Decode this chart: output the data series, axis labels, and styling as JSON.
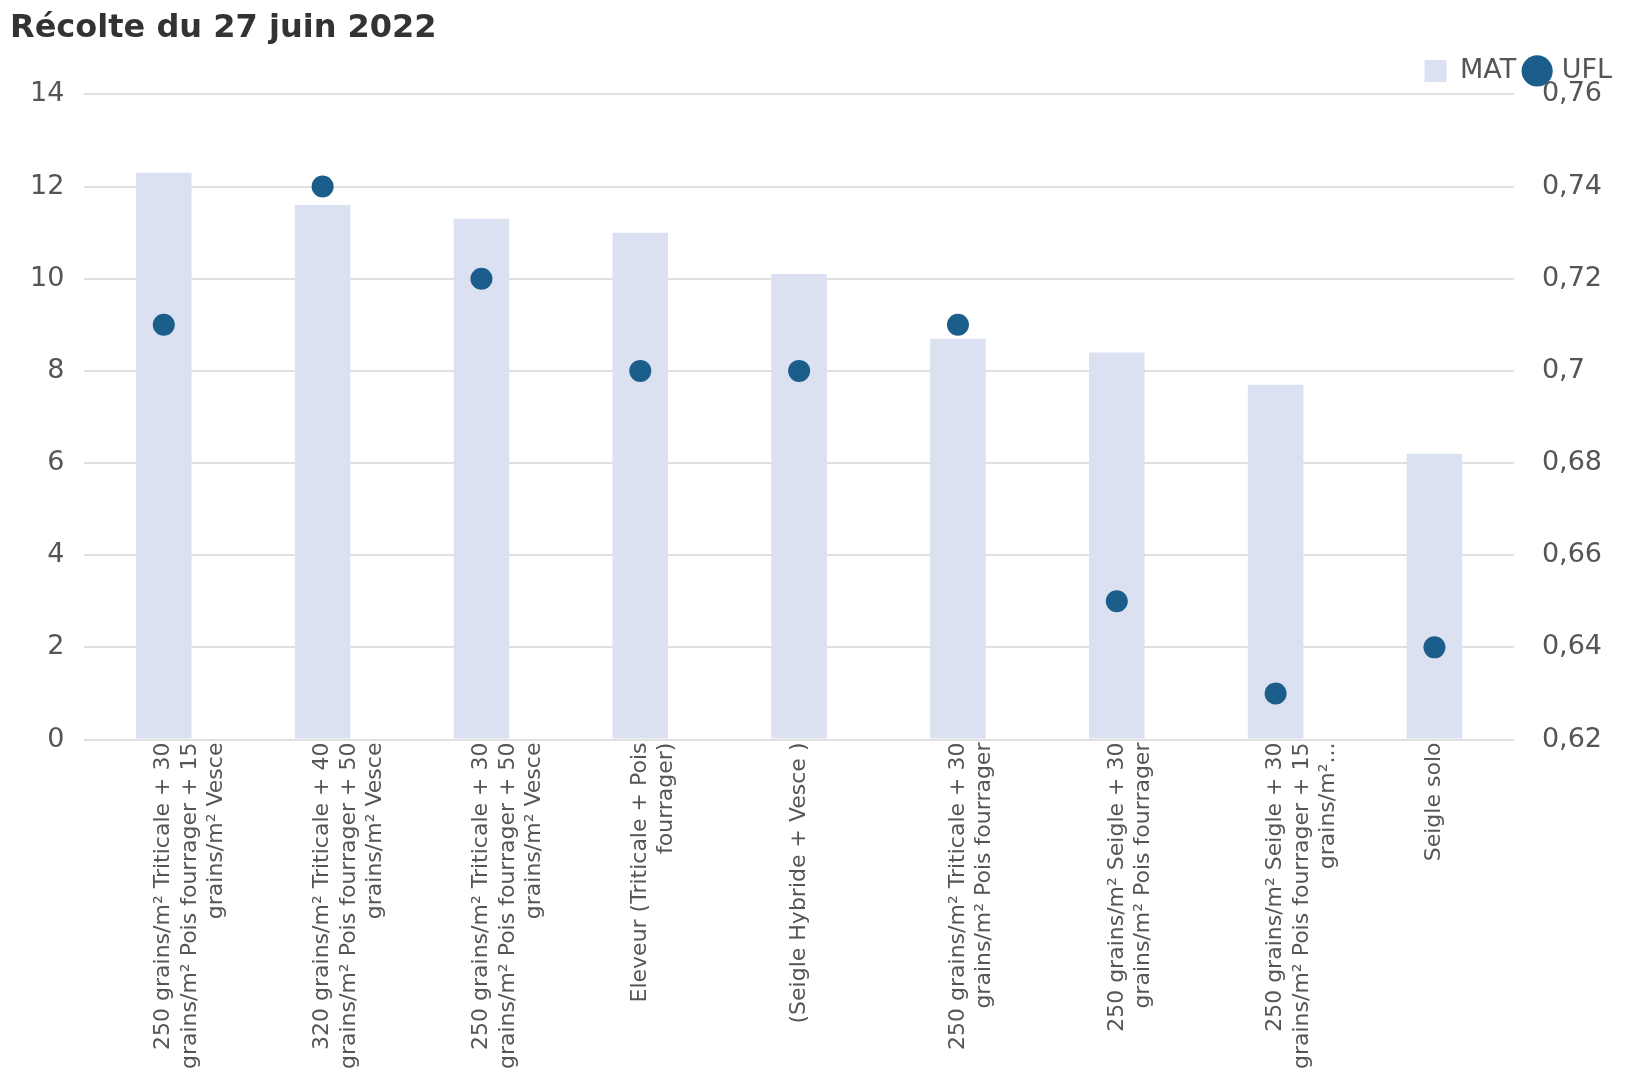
{
  "chart_data": {
    "type": "bar",
    "title": "Récolte du 27 juin 2022",
    "categories": [
      "250 grains/m² Triticale + 30 grains/m² Pois fourrager + 15 grains/m² Vesce",
      "320 grains/m² Triticale + 40 grains/m² Pois fourrager + 50 grains/m² Vesce",
      "250 grains/m² Triticale + 30 grains/m² Pois fourrager + 50 grains/m² Vesce",
      "Eleveur (Triticale + Pois fourrager)",
      "(Seigle Hybride + Vesce )",
      "250 grains/m² Triticale + 30 grains/m² Pois fourrager",
      "250 grains/m² Seigle + 30 grains/m² Pois fourrager",
      "250 grains/m² Seigle + 30 grains/m² Pois fourrager + 15 grains/m²...",
      "Seigle solo"
    ],
    "series": [
      {
        "name": "MAT",
        "color": "#dce1f2",
        "values": [
          12.3,
          11.6,
          11.3,
          11.0,
          10.1,
          8.7,
          8.4,
          7.7,
          6.2
        ]
      },
      {
        "name": "UFL",
        "type": "scatter",
        "axis": "y2",
        "color": "#1b5e8c",
        "values": [
          0.71,
          0.74,
          0.72,
          0.7,
          0.7,
          0.71,
          0.65,
          0.63,
          0.64
        ]
      }
    ],
    "ylim": [
      0,
      14
    ],
    "yticks": [
      0,
      2,
      4,
      6,
      8,
      10,
      12,
      14
    ],
    "y2lim": [
      0.62,
      0.76
    ],
    "y2ticks": [
      {
        "value": 0.62,
        "label": "0,62"
      },
      {
        "value": 0.64,
        "label": "0,64"
      },
      {
        "value": 0.66,
        "label": "0,66"
      },
      {
        "value": 0.68,
        "label": "0,68"
      },
      {
        "value": 0.7,
        "label": "0,7"
      },
      {
        "value": 0.72,
        "label": "0,72"
      },
      {
        "value": 0.74,
        "label": "0,74"
      },
      {
        "value": 0.76,
        "label": "0,76"
      }
    ],
    "grid": "y",
    "legend": "top right",
    "marker": "circle"
  }
}
